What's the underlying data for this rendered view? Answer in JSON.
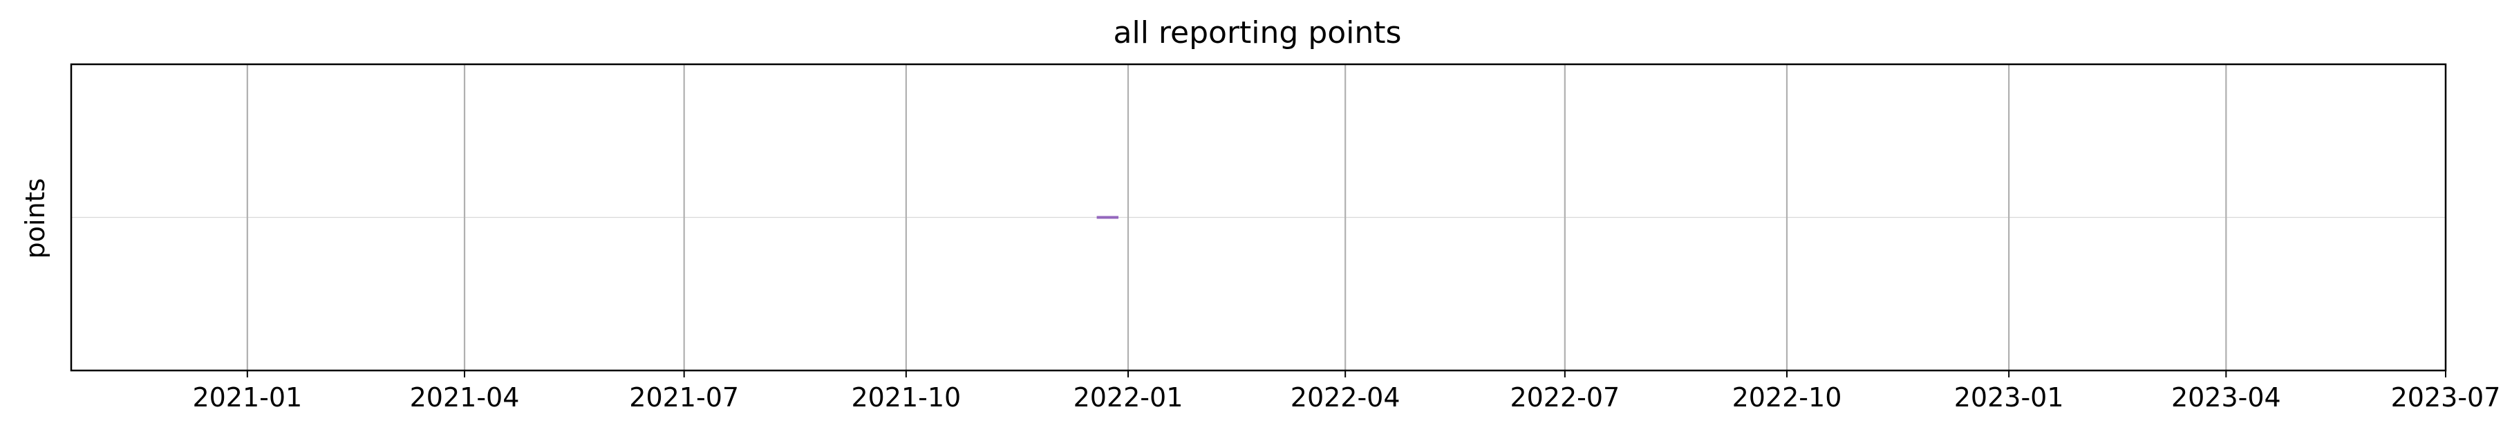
{
  "chart_data": {
    "type": "line",
    "title": "all reporting points",
    "xlabel": "",
    "ylabel": "points",
    "x_axis_type": "date",
    "xlim": [
      "2020-10-20",
      "2023-07-01"
    ],
    "ylim": [
      -1,
      1
    ],
    "xticks": [
      "2021-01",
      "2021-04",
      "2021-07",
      "2021-10",
      "2022-01",
      "2022-04",
      "2022-07",
      "2022-10",
      "2023-01",
      "2023-04",
      "2023-07"
    ],
    "grid": {
      "x": true,
      "y": false
    },
    "reference_line_y": 0,
    "legend": "none",
    "series": [
      {
        "x": [
          "2021-12-19",
          "2021-12-28"
        ],
        "y": [
          0,
          0
        ],
        "color": "#9467bd"
      }
    ],
    "colors": {
      "series": "#9467bd",
      "grid": "#b0b0b0",
      "reference_line": "#d9d9d9",
      "frame": "#000000"
    }
  }
}
